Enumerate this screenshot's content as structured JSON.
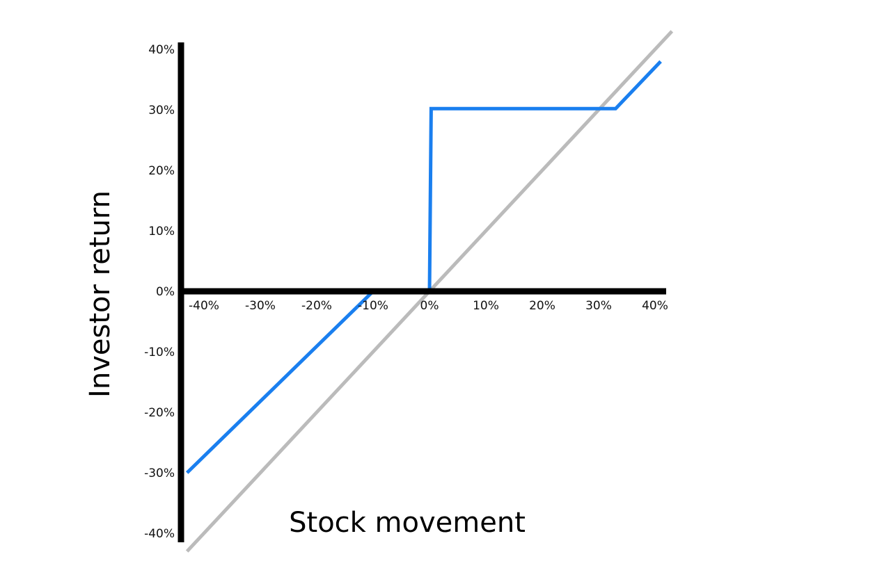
{
  "chart_data": {
    "type": "line",
    "xlabel": "Stock movement",
    "ylabel": "Investor return",
    "xlim": [
      -40,
      40
    ],
    "ylim": [
      -40,
      40
    ],
    "x_ticks": [
      "-40%",
      "-30%",
      "-20%",
      "-10%",
      "0%",
      "10%",
      "20%",
      "30%",
      "40%"
    ],
    "y_ticks": [
      "40%",
      "30%",
      "20%",
      "10%",
      "0%",
      "-10%",
      "-20%",
      "-30%",
      "-40%"
    ],
    "grid": false,
    "colors": {
      "payoff": "#1a7fef",
      "reference": "#bbbbbb",
      "axis": "#000000"
    },
    "series": [
      {
        "x": [
          -43,
          43
        ],
        "y": [
          -43,
          43
        ]
      },
      {
        "x": [
          -43,
          -10,
          0,
          0.3,
          33,
          41
        ],
        "y": [
          -30,
          0,
          -0.2,
          30.2,
          30.2,
          38
        ]
      }
    ]
  }
}
